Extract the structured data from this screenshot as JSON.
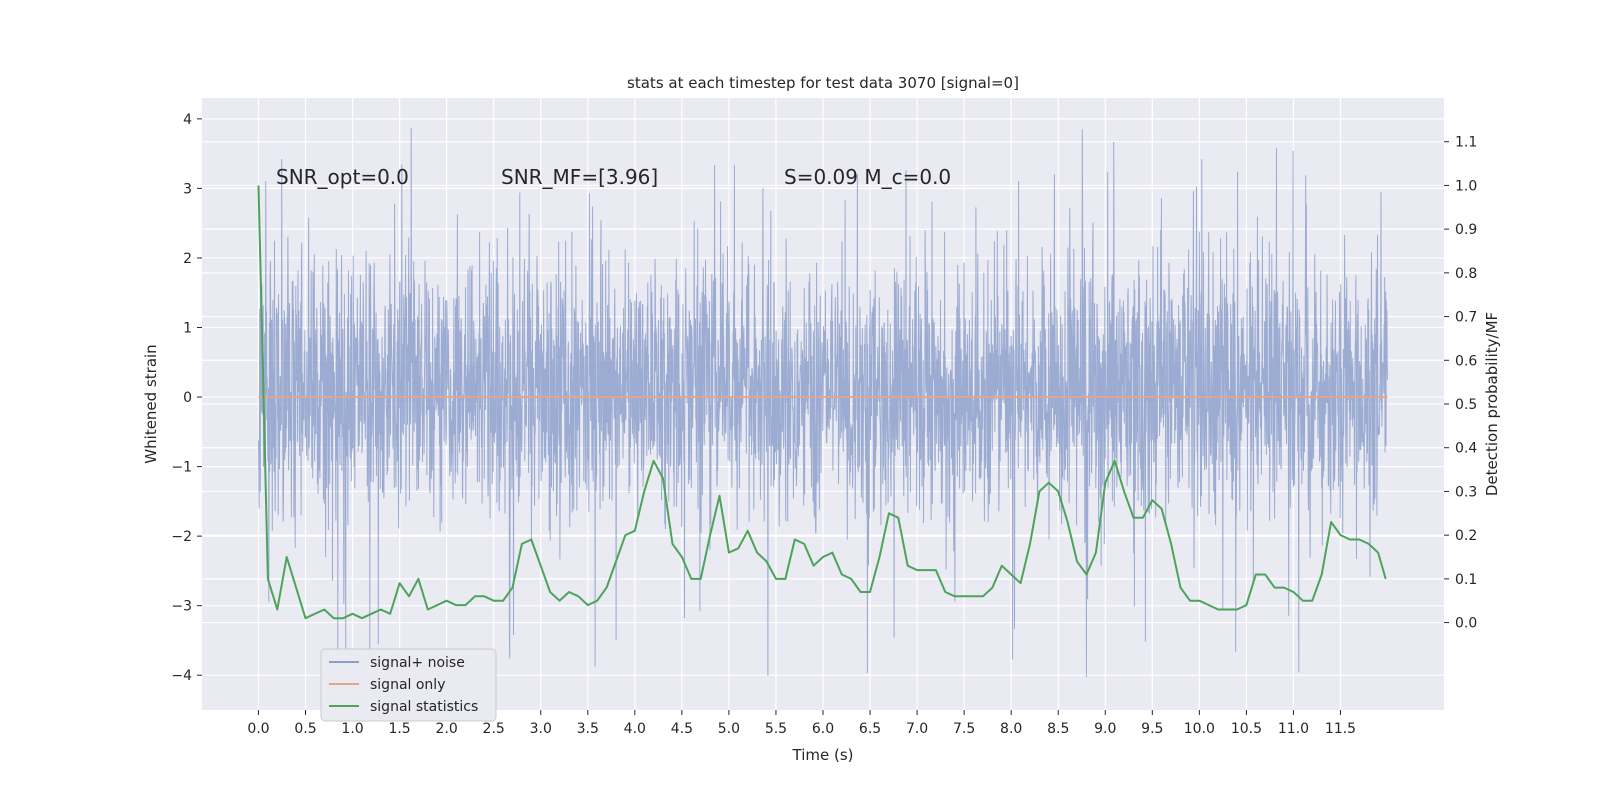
{
  "chart_data": {
    "type": "line",
    "title": "stats at each timestep for test data 3070 [signal=0]",
    "xlabel": "Time (s)",
    "ylabel_left": "Whitened strain",
    "ylabel_right": "Detection probability/MF",
    "xlim": [
      -0.6,
      12.6
    ],
    "ylim_left": [
      -4.5,
      4.3
    ],
    "ylim_right": [
      -0.2,
      1.2
    ],
    "x_ticks": [
      0.0,
      0.5,
      1.0,
      1.5,
      2.0,
      2.5,
      3.0,
      3.5,
      4.0,
      4.5,
      5.0,
      5.5,
      6.0,
      6.5,
      7.0,
      7.5,
      8.0,
      8.5,
      9.0,
      9.5,
      10.0,
      10.5,
      11.0,
      11.5
    ],
    "x_tick_labels": [
      "0.0",
      "0.5",
      "1.0",
      "1.5",
      "2.0",
      "2.5",
      "3.0",
      "3.5",
      "4.0",
      "4.5",
      "5.0",
      "5.5",
      "6.0",
      "6.5",
      "7.0",
      "7.5",
      "8.0",
      "8.5",
      "9.0",
      "9.5",
      "10.0",
      "10.5",
      "11.0",
      "11.5"
    ],
    "y_left_ticks": [
      -4,
      -3,
      -2,
      -1,
      0,
      1,
      2,
      3,
      4
    ],
    "y_left_tick_labels": [
      "−4",
      "−3",
      "−2",
      "−1",
      "0",
      "1",
      "2",
      "3",
      "4"
    ],
    "y_right_ticks": [
      0.0,
      0.1,
      0.2,
      0.3,
      0.4,
      0.5,
      0.6,
      0.7,
      0.8,
      0.9,
      1.0,
      1.1
    ],
    "y_right_tick_labels": [
      "0.0",
      "0.1",
      "0.2",
      "0.3",
      "0.4",
      "0.5",
      "0.6",
      "0.7",
      "0.8",
      "0.9",
      "1.0",
      "1.1"
    ],
    "grid": true,
    "legend_position": "lower-left",
    "annotations": [
      {
        "id": "snr-opt",
        "text": "SNR_opt=0.0"
      },
      {
        "id": "snr-mf",
        "text": "SNR_MF=[3.96]"
      },
      {
        "id": "s-mc",
        "text": "S=0.09   M_c=0.0"
      }
    ],
    "series": [
      {
        "name": "signal+ noise",
        "axis": "left",
        "color": "#8da0cb",
        "style": "dense-noise",
        "x_range": [
          0.0,
          12.0
        ],
        "typical_range": [
          -2.0,
          2.3
        ],
        "peak_range": [
          -4.1,
          3.9
        ]
      },
      {
        "name": "signal only",
        "axis": "left",
        "color": "#e5a58c",
        "x": [
          0.0,
          12.0
        ],
        "y": [
          0.0,
          0.0
        ]
      },
      {
        "name": "signal statistics",
        "axis": "right",
        "color": "#4ca35a",
        "x": [
          0.0,
          0.1,
          0.2,
          0.3,
          0.4,
          0.5,
          0.6,
          0.7,
          0.8,
          0.9,
          1.0,
          1.1,
          1.2,
          1.3,
          1.4,
          1.5,
          1.6,
          1.7,
          1.8,
          1.9,
          2.0,
          2.1,
          2.2,
          2.3,
          2.4,
          2.5,
          2.6,
          2.7,
          2.8,
          2.9,
          3.0,
          3.1,
          3.2,
          3.3,
          3.4,
          3.5,
          3.6,
          3.7,
          3.8,
          3.9,
          4.0,
          4.1,
          4.2,
          4.3,
          4.4,
          4.5,
          4.6,
          4.7,
          4.8,
          4.9,
          5.0,
          5.1,
          5.2,
          5.3,
          5.4,
          5.5,
          5.6,
          5.7,
          5.8,
          5.9,
          6.0,
          6.1,
          6.2,
          6.3,
          6.4,
          6.5,
          6.6,
          6.7,
          6.8,
          6.9,
          7.0,
          7.1,
          7.2,
          7.3,
          7.4,
          7.5,
          7.6,
          7.7,
          7.8,
          7.9,
          8.0,
          8.1,
          8.2,
          8.3,
          8.4,
          8.5,
          8.6,
          8.7,
          8.8,
          8.9,
          9.0,
          9.1,
          9.2,
          9.3,
          9.4,
          9.5,
          9.6,
          9.7,
          9.8,
          9.9,
          10.0,
          10.1,
          10.2,
          10.3,
          10.4,
          10.5,
          10.6,
          10.7,
          10.8,
          10.9,
          11.0,
          11.1,
          11.2,
          11.3,
          11.4,
          11.5,
          11.6,
          11.7,
          11.8,
          11.9,
          11.98
        ],
        "y": [
          1.0,
          0.1,
          0.03,
          0.15,
          0.08,
          0.01,
          0.02,
          0.03,
          0.01,
          0.01,
          0.02,
          0.01,
          0.02,
          0.03,
          0.02,
          0.09,
          0.06,
          0.1,
          0.03,
          0.04,
          0.05,
          0.04,
          0.04,
          0.06,
          0.06,
          0.05,
          0.05,
          0.08,
          0.18,
          0.19,
          0.13,
          0.07,
          0.05,
          0.07,
          0.06,
          0.04,
          0.05,
          0.08,
          0.14,
          0.2,
          0.21,
          0.3,
          0.37,
          0.33,
          0.18,
          0.15,
          0.1,
          0.1,
          0.2,
          0.29,
          0.16,
          0.17,
          0.21,
          0.16,
          0.14,
          0.1,
          0.1,
          0.19,
          0.18,
          0.13,
          0.15,
          0.16,
          0.11,
          0.1,
          0.07,
          0.07,
          0.15,
          0.25,
          0.24,
          0.13,
          0.12,
          0.12,
          0.12,
          0.07,
          0.06,
          0.06,
          0.06,
          0.06,
          0.08,
          0.13,
          0.11,
          0.09,
          0.18,
          0.3,
          0.32,
          0.3,
          0.23,
          0.14,
          0.11,
          0.16,
          0.32,
          0.37,
          0.3,
          0.24,
          0.24,
          0.28,
          0.26,
          0.18,
          0.08,
          0.05,
          0.05,
          0.04,
          0.03,
          0.03,
          0.03,
          0.04,
          0.11,
          0.11,
          0.08,
          0.08,
          0.07,
          0.05,
          0.05,
          0.11,
          0.23,
          0.2,
          0.19,
          0.19,
          0.18,
          0.16,
          0.1
        ]
      }
    ]
  }
}
